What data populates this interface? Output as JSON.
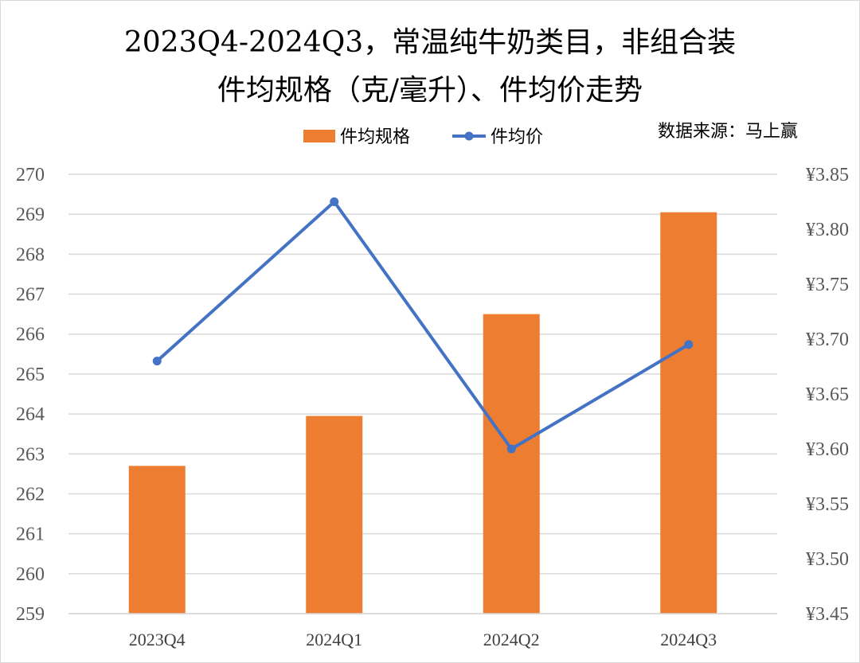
{
  "chart_data": {
    "type": "bar+line",
    "title_line1": "2023Q4-2024Q3，常温纯牛奶类目，非组合装",
    "title_line2": "件均规格（克/毫升）、件均价走势",
    "source": "数据来源：马上赢",
    "categories": [
      "2023Q4",
      "2024Q1",
      "2024Q2",
      "2024Q3"
    ],
    "series": [
      {
        "name": "件均规格",
        "type": "bar",
        "axis": "left",
        "color": "#ed7d31",
        "values": [
          262.7,
          263.95,
          266.5,
          269.05
        ]
      },
      {
        "name": "件均价",
        "type": "line",
        "axis": "right",
        "color": "#4472c4",
        "values": [
          3.68,
          3.825,
          3.6,
          3.695
        ]
      }
    ],
    "y_left": {
      "min": 259,
      "max": 270,
      "step": 1,
      "ticks": [
        "259",
        "260",
        "261",
        "262",
        "263",
        "264",
        "265",
        "266",
        "267",
        "268",
        "269",
        "270"
      ]
    },
    "y_right": {
      "min": 3.45,
      "max": 3.85,
      "step": 0.05,
      "ticks": [
        "¥3.45",
        "¥3.50",
        "¥3.55",
        "¥3.60",
        "¥3.65",
        "¥3.70",
        "¥3.75",
        "¥3.80",
        "¥3.85"
      ]
    },
    "grid": true,
    "legend_position": "top-center"
  }
}
